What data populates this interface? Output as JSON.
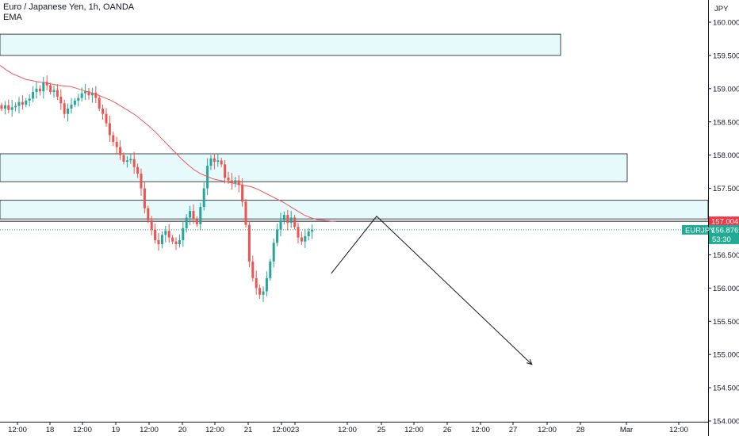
{
  "header": {
    "title": "Euro / Japanese Yen, 1h, OANDA",
    "indicator": "EMA"
  },
  "price_axis": {
    "currency": "JPY",
    "ticks": [
      "160.000",
      "159.500",
      "159.000",
      "158.500",
      "158.000",
      "157.500",
      "157.000",
      "156.500",
      "156.000",
      "155.500",
      "155.000",
      "154.500",
      "154.000"
    ]
  },
  "time_axis": {
    "ticks": [
      "12:00",
      "18",
      "12:00",
      "19",
      "12:00",
      "20",
      "12:00",
      "21",
      "12:00",
      "23",
      "12:00",
      "25",
      "12:00",
      "26",
      "12:00",
      "27",
      "12:00",
      "28",
      "Mar",
      "12:00"
    ]
  },
  "price_tags": {
    "line_price": "157.004",
    "symbol": "EURJPY",
    "last_price": "156.876",
    "countdown": "53:30"
  },
  "colors": {
    "up": "#26a69a",
    "down": "#ef5350",
    "ema": "#f05858",
    "zone_fill": "#e6f9fb",
    "zone_stroke": "#131722",
    "price_line_tag": "#f23645",
    "last_price_tag": "#22ab94"
  },
  "chart_data": {
    "type": "candlestick",
    "symbol": "EURJPY",
    "timeframe": "1h",
    "ylim": [
      154.0,
      160.25
    ],
    "ohlc_close": [
      158.7,
      158.75,
      158.68,
      158.72,
      158.74,
      158.8,
      158.76,
      158.82,
      158.85,
      158.95,
      159.0,
      158.96,
      159.1,
      159.05,
      158.95,
      158.98,
      158.88,
      158.78,
      158.62,
      158.7,
      158.76,
      158.82,
      158.86,
      158.93,
      158.96,
      158.9,
      158.94,
      158.86,
      158.7,
      158.62,
      158.48,
      158.3,
      158.2,
      158.12,
      158.0,
      157.9,
      157.92,
      157.94,
      157.82,
      157.72,
      157.5,
      157.2,
      157.02,
      156.88,
      156.72,
      156.66,
      156.8,
      156.86,
      156.76,
      156.7,
      156.66,
      156.72,
      156.9,
      157.06,
      157.16,
      157.04,
      156.96,
      157.22,
      157.5,
      157.84,
      157.95,
      157.9,
      157.92,
      157.86,
      157.66,
      157.62,
      157.58,
      157.62,
      157.55,
      157.3,
      156.95,
      156.4,
      156.15,
      156.0,
      155.9,
      155.95,
      156.15,
      156.4,
      156.68,
      156.88,
      157.02,
      157.1,
      156.98,
      157.06,
      156.92,
      156.76,
      156.7,
      156.78,
      156.85,
      156.88
    ],
    "ema": [
      159.35,
      159.28,
      159.22,
      159.18,
      159.14,
      159.12,
      159.1,
      159.09,
      159.07,
      159.05,
      159.04,
      159.03,
      159.0,
      158.97,
      158.94,
      158.91,
      158.87,
      158.83,
      158.78,
      158.72,
      158.66,
      158.6,
      158.52,
      158.44,
      158.35,
      158.25,
      158.15,
      158.05,
      157.95,
      157.86,
      157.78,
      157.72,
      157.68,
      157.64,
      157.62,
      157.6,
      157.58,
      157.56,
      157.54,
      157.52,
      157.48,
      157.43,
      157.38,
      157.33,
      157.28,
      157.22,
      157.16,
      157.1,
      157.06,
      157.03,
      157.02,
      157.01,
      157.0
    ],
    "zones": [
      {
        "top": 159.82,
        "bottom": 159.5
      },
      {
        "top": 158.02,
        "bottom": 157.6
      },
      {
        "top": 157.32,
        "bottom": 157.04
      }
    ],
    "horizontal_lines": [
      157.004
    ],
    "projection_path": [
      {
        "bar": 94.5,
        "price": 156.22
      },
      {
        "bar": 107.5,
        "price": 157.08
      },
      {
        "bar": 152,
        "price": 154.85
      }
    ]
  }
}
